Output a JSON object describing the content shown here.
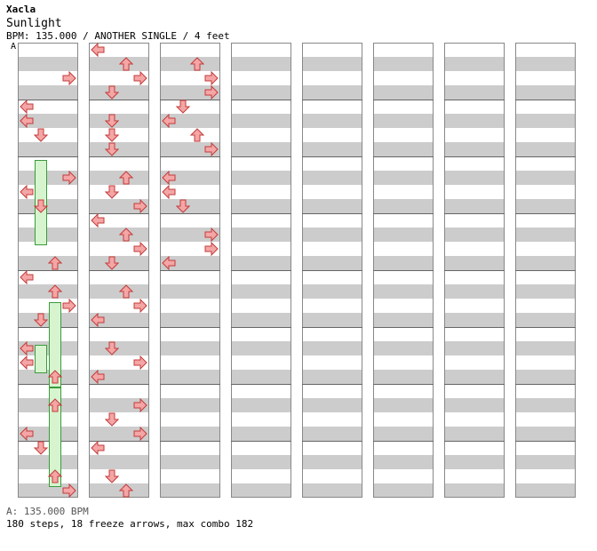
{
  "header": {
    "artist": "Xacla",
    "title": "Sunlight",
    "info": "BPM: 135.000 / ANOTHER SINGLE / 4 feet",
    "bpm_marker": "A"
  },
  "footer": {
    "bpm_legend": "A: 135.000 BPM",
    "stats": "180 steps, 18 freeze arrows, max combo 182"
  },
  "colors": {
    "red_arrow": "#f4a6a6",
    "blue_arrow": "#7ab8ec",
    "freeze": "#d6f5cf"
  },
  "chart": {
    "columns": 8,
    "measures_per_column": 8,
    "lanes": [
      "left",
      "down",
      "up",
      "right"
    ],
    "notes": [
      [
        "right",
        0,
        0.5
      ],
      [
        "left",
        0.5,
        0.75
      ],
      [
        "left",
        1,
        0
      ],
      [
        "down",
        1,
        0.5
      ],
      [
        "right",
        2,
        0.25
      ],
      [
        "left",
        2,
        0.5
      ],
      [
        "down",
        2,
        0.75
      ],
      [
        "up",
        3,
        0.75
      ],
      [
        "left",
        4,
        0
      ],
      [
        "up",
        4,
        0.25
      ],
      [
        "right",
        4,
        0.5
      ],
      [
        "down",
        4,
        0.75
      ],
      [
        "left",
        5,
        0.25
      ],
      [
        "left",
        5,
        0.5
      ],
      [
        "up",
        5,
        0.75
      ],
      [
        "up",
        6,
        0.25
      ],
      [
        "left",
        6,
        0.75
      ],
      [
        "down",
        7,
        0
      ],
      [
        "up",
        7,
        0.5
      ],
      [
        "right",
        7,
        0.75
      ],
      [
        "left",
        8,
        0
      ],
      [
        "up",
        8,
        0.25
      ],
      [
        "right",
        8,
        0.5
      ],
      [
        "down",
        8,
        0.75
      ],
      [
        "down",
        9,
        0.25
      ],
      [
        "down",
        9,
        0.5
      ],
      [
        "down",
        9,
        0.75
      ],
      [
        "up",
        10,
        0.25
      ],
      [
        "down",
        10,
        0.5
      ],
      [
        "right",
        10,
        0.75
      ],
      [
        "left",
        11,
        0
      ],
      [
        "up",
        11,
        0.25
      ],
      [
        "right",
        11,
        0.5
      ],
      [
        "down",
        11,
        0.75
      ],
      [
        "up",
        12,
        0.25
      ],
      [
        "right",
        12,
        0.5
      ],
      [
        "left",
        12,
        0.75
      ],
      [
        "down",
        13,
        0.25
      ],
      [
        "right",
        13,
        0.5
      ],
      [
        "left",
        13,
        0.75
      ],
      [
        "right",
        14,
        0.25
      ],
      [
        "down",
        14,
        0.5
      ],
      [
        "right",
        14,
        0.75
      ],
      [
        "left",
        15,
        0
      ],
      [
        "down",
        15,
        0.5
      ],
      [
        "up",
        15,
        0.75
      ],
      [
        "up",
        16,
        0.25
      ],
      [
        "right",
        16,
        0.5
      ],
      [
        "right",
        16,
        0.75
      ],
      [
        "down",
        17,
        0
      ],
      [
        "left",
        17,
        0.25
      ],
      [
        "up",
        17,
        0.5
      ],
      [
        "right",
        17,
        0.75
      ],
      [
        "left",
        18,
        0.25
      ],
      [
        "left",
        18,
        0.5
      ],
      [
        "down",
        18,
        0.75
      ],
      [
        "right",
        19,
        0.25
      ],
      [
        "right",
        19,
        0.5
      ],
      [
        "left",
        19,
        0.75
      ]
    ],
    "freezes": [
      [
        "down",
        2,
        0.0,
        1.5
      ],
      [
        "up",
        4,
        0.5,
        1.5
      ],
      [
        "down",
        5,
        0.25,
        0.5
      ],
      [
        "up",
        6,
        0.0,
        1.75
      ]
    ]
  }
}
